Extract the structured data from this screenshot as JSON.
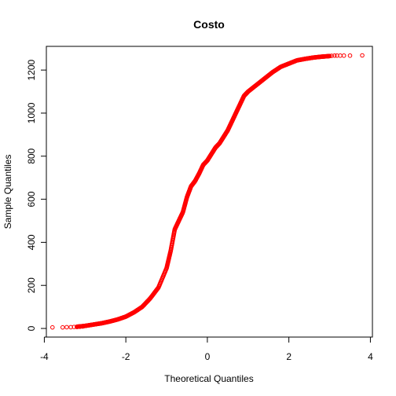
{
  "chart_data": {
    "type": "scatter",
    "title": "Costo",
    "xlabel": "Theoretical Quantiles",
    "ylabel": "Sample Quantiles",
    "xlim": [
      -3.95,
      4.05
    ],
    "ylim": [
      -40,
      1310
    ],
    "xticks": [
      -4,
      -2,
      0,
      2,
      4
    ],
    "yticks": [
      0,
      200,
      400,
      600,
      800,
      1000,
      1200
    ],
    "grid": false,
    "legend": "none",
    "point_color": "#ff0000",
    "point_shape": "open-circle",
    "curve_points": [
      {
        "x": -3.2,
        "y": 8
      },
      {
        "x": -3.0,
        "y": 12
      },
      {
        "x": -2.8,
        "y": 18
      },
      {
        "x": -2.6,
        "y": 24
      },
      {
        "x": -2.4,
        "y": 32
      },
      {
        "x": -2.2,
        "y": 42
      },
      {
        "x": -2.0,
        "y": 55
      },
      {
        "x": -1.8,
        "y": 75
      },
      {
        "x": -1.6,
        "y": 100
      },
      {
        "x": -1.4,
        "y": 140
      },
      {
        "x": -1.2,
        "y": 190
      },
      {
        "x": -1.0,
        "y": 280
      },
      {
        "x": -0.9,
        "y": 360
      },
      {
        "x": -0.8,
        "y": 460
      },
      {
        "x": -0.7,
        "y": 500
      },
      {
        "x": -0.6,
        "y": 540
      },
      {
        "x": -0.5,
        "y": 610
      },
      {
        "x": -0.4,
        "y": 660
      },
      {
        "x": -0.3,
        "y": 685
      },
      {
        "x": -0.2,
        "y": 720
      },
      {
        "x": -0.1,
        "y": 760
      },
      {
        "x": 0.0,
        "y": 780
      },
      {
        "x": 0.1,
        "y": 810
      },
      {
        "x": 0.2,
        "y": 840
      },
      {
        "x": 0.3,
        "y": 860
      },
      {
        "x": 0.4,
        "y": 890
      },
      {
        "x": 0.5,
        "y": 920
      },
      {
        "x": 0.6,
        "y": 960
      },
      {
        "x": 0.7,
        "y": 1000
      },
      {
        "x": 0.8,
        "y": 1040
      },
      {
        "x": 0.9,
        "y": 1080
      },
      {
        "x": 1.0,
        "y": 1100
      },
      {
        "x": 1.2,
        "y": 1130
      },
      {
        "x": 1.4,
        "y": 1160
      },
      {
        "x": 1.6,
        "y": 1190
      },
      {
        "x": 1.8,
        "y": 1215
      },
      {
        "x": 2.0,
        "y": 1230
      },
      {
        "x": 2.2,
        "y": 1245
      },
      {
        "x": 2.4,
        "y": 1252
      },
      {
        "x": 2.6,
        "y": 1258
      },
      {
        "x": 2.8,
        "y": 1262
      },
      {
        "x": 3.0,
        "y": 1265
      }
    ],
    "tail_points": [
      {
        "x": -3.8,
        "y": 5
      },
      {
        "x": -3.55,
        "y": 5
      },
      {
        "x": -3.45,
        "y": 6
      },
      {
        "x": -3.35,
        "y": 6
      },
      {
        "x": -3.27,
        "y": 7
      },
      {
        "x": -3.2,
        "y": 7
      },
      {
        "x": -3.13,
        "y": 8
      },
      {
        "x": -3.06,
        "y": 9
      },
      {
        "x": 3.05,
        "y": 1266
      },
      {
        "x": 3.12,
        "y": 1267
      },
      {
        "x": 3.18,
        "y": 1267
      },
      {
        "x": 3.26,
        "y": 1267
      },
      {
        "x": 3.35,
        "y": 1267
      },
      {
        "x": 3.5,
        "y": 1267
      },
      {
        "x": 3.8,
        "y": 1268
      }
    ]
  }
}
